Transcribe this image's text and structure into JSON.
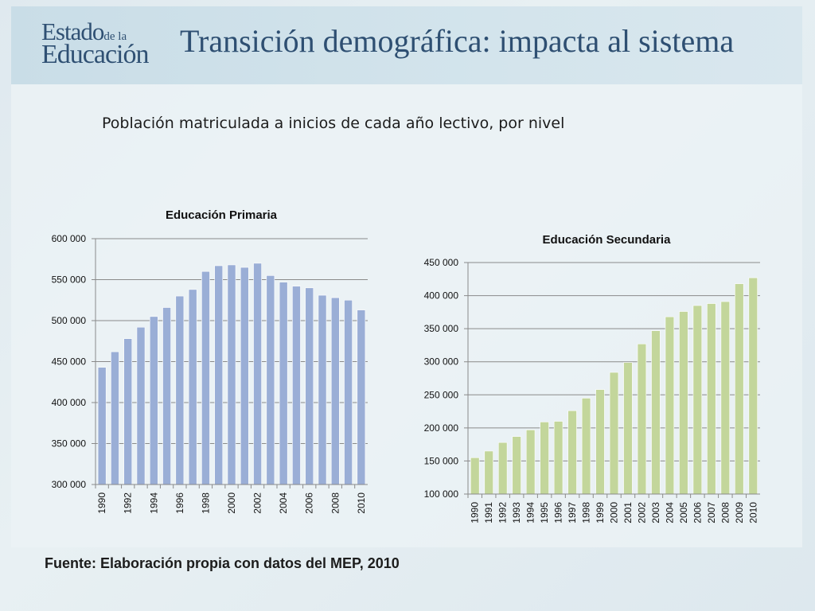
{
  "header": {
    "logo_line1": "Estado",
    "logo_line1_small": "de la",
    "logo_line2": "Educación",
    "title": "Transición demográfica: impacta al sistema"
  },
  "subtitle": "Población matriculada a inicios de cada año lectivo, por nivel",
  "source": "Fuente:  Elaboración propia con datos del MEP, 2010",
  "colors": {
    "primaria_bar": "#9aaed6",
    "secundaria_bar": "#c3d69b",
    "title_blue": "#2e4f72"
  },
  "chart_data": [
    {
      "type": "bar",
      "title": "Educación Primaria",
      "categories": [
        "1990",
        "1991",
        "1992",
        "1993",
        "1994",
        "1995",
        "1996",
        "1997",
        "1998",
        "1999",
        "2000",
        "2001",
        "2002",
        "2003",
        "2004",
        "2005",
        "2006",
        "2007",
        "2008",
        "2009",
        "2010"
      ],
      "tick_labels": [
        "1990",
        "1992",
        "1994",
        "1996",
        "1998",
        "2000",
        "2002",
        "2004",
        "2006",
        "2008",
        "2010"
      ],
      "values": [
        443000,
        462000,
        478000,
        492000,
        505000,
        516000,
        530000,
        538000,
        560000,
        567000,
        568000,
        565000,
        570000,
        555000,
        547000,
        542000,
        540000,
        531000,
        528000,
        525000,
        513000
      ],
      "ylim": [
        300000,
        600000
      ],
      "yticks": [
        300000,
        350000,
        400000,
        450000,
        500000,
        550000,
        600000
      ],
      "ytick_labels": [
        "300 000",
        "350 000",
        "400 000",
        "450 000",
        "500 000",
        "550 000",
        "600 000"
      ],
      "grid": true,
      "color": "#9aaed6"
    },
    {
      "type": "bar",
      "title": "Educación Secundaria",
      "categories": [
        "1990",
        "1991",
        "1992",
        "1993",
        "1994",
        "1995",
        "1996",
        "1997",
        "1998",
        "1999",
        "2000",
        "2001",
        "2002",
        "2003",
        "2004",
        "2005",
        "2006",
        "2007",
        "2008",
        "2009",
        "2010"
      ],
      "tick_labels": [
        "1990",
        "1991",
        "1992",
        "1993",
        "1994",
        "1995",
        "1996",
        "1997",
        "1998",
        "1999",
        "2000",
        "2001",
        "2002",
        "2003",
        "2004",
        "2005",
        "2006",
        "2007",
        "2008",
        "2009",
        "2010"
      ],
      "values": [
        155000,
        165000,
        178000,
        187000,
        197000,
        209000,
        210000,
        226000,
        245000,
        258000,
        284000,
        299000,
        327000,
        347000,
        368000,
        376000,
        385000,
        388000,
        391000,
        418000,
        427000
      ],
      "ylim": [
        100000,
        450000
      ],
      "yticks": [
        100000,
        150000,
        200000,
        250000,
        300000,
        350000,
        400000,
        450000
      ],
      "ytick_labels": [
        "100 000",
        "150 000",
        "200 000",
        "250 000",
        "300 000",
        "350 000",
        "400 000",
        "450 000"
      ],
      "grid": true,
      "color": "#c3d69b"
    }
  ]
}
